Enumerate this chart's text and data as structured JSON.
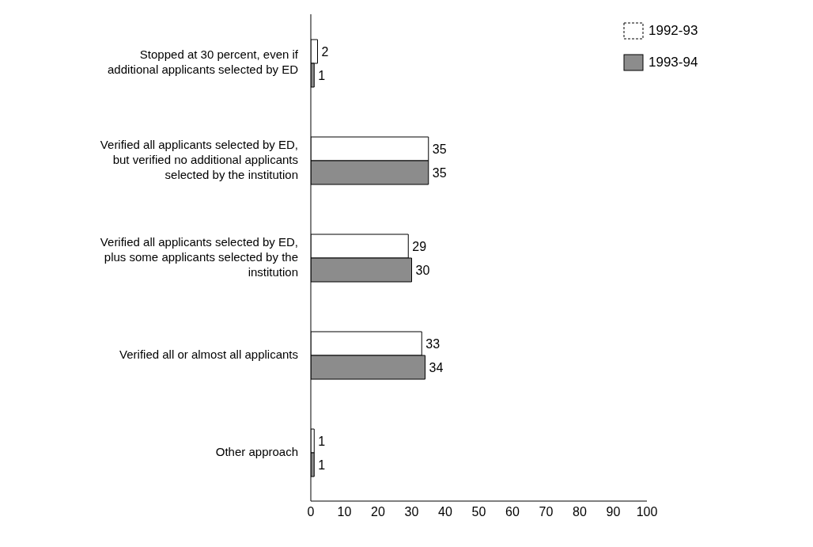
{
  "chart_data": {
    "type": "bar",
    "orientation": "horizontal",
    "categories": [
      "Stopped at 30 percent, even if additional applicants selected by ED",
      "Verified all applicants selected by ED, but verified no additional applicants selected by the institution",
      "Verified all applicants selected by ED, plus some applicants selected by the institution",
      "Verified all or almost all applicants",
      "Other approach"
    ],
    "series": [
      {
        "name": "1992-93",
        "color": "#ffffff",
        "values": [
          2,
          35,
          29,
          33,
          1
        ]
      },
      {
        "name": "1993-94",
        "color": "#8c8c8c",
        "values": [
          1,
          35,
          30,
          34,
          1
        ]
      }
    ],
    "xlim": [
      0,
      100
    ],
    "xticks": [
      0,
      10,
      20,
      30,
      40,
      50,
      60,
      70,
      80,
      90,
      100
    ],
    "data_labels": true,
    "legend": "top right",
    "grid": false
  }
}
